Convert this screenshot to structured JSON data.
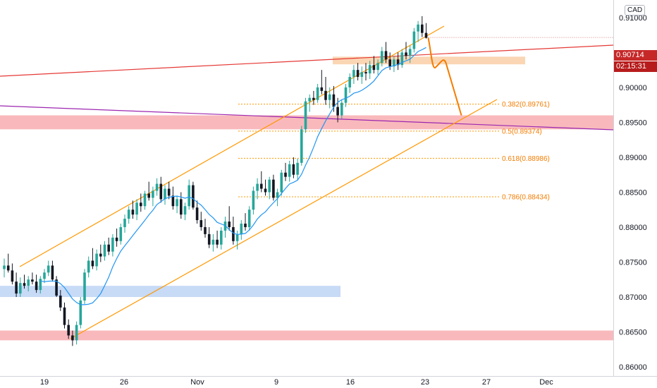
{
  "currency": "CAD",
  "price_tag": "0.90714",
  "timer_tag": "02:15:31",
  "colors": {
    "up": "#26a69a",
    "candle": "#131722",
    "ma": "#2196f3",
    "channel": "#ff9800",
    "resistance": "#e53935",
    "purple": "#9c27b0",
    "zone_red": "#f7a1a6",
    "zone_blue": "#bdd3f5",
    "zone_orange": "#f9c89b",
    "price_badge": "#c62828"
  },
  "chart_data": {
    "type": "candlestick",
    "y_axis_ticks": [
      "0.91000",
      "0.90500",
      "0.90000",
      "0.89500",
      "0.89000",
      "0.88500",
      "0.88000",
      "0.87500",
      "0.87000",
      "0.86500",
      "0.86000"
    ],
    "x_axis_ticks": [
      "19",
      "26",
      "Nov",
      "9",
      "16",
      "23",
      "27",
      "Dec"
    ],
    "ylim": [
      0.8595,
      0.9115
    ],
    "fib_levels": [
      {
        "label": "0.382(0.89761)",
        "value": 0.89761
      },
      {
        "label": "0.5(0.89374)",
        "value": 0.89374
      },
      {
        "label": "0.618(0.88986)",
        "value": 0.88986
      },
      {
        "label": "0.786(0.88434)",
        "value": 0.88434
      }
    ],
    "zones": [
      {
        "kind": "support",
        "from": 0.894,
        "to": 0.896
      },
      {
        "kind": "support",
        "from": 0.8638,
        "to": 0.8652
      },
      {
        "kind": "demand",
        "from": 0.87,
        "to": 0.8716
      },
      {
        "kind": "supply",
        "from": 0.9033,
        "to": 0.9044
      }
    ],
    "candles": [
      [
        0.874,
        0.8755,
        0.8728,
        0.8745
      ],
      [
        0.8745,
        0.8762,
        0.8735,
        0.8738
      ],
      [
        0.8738,
        0.8748,
        0.8718,
        0.8722
      ],
      [
        0.8722,
        0.8735,
        0.87,
        0.8705
      ],
      [
        0.8705,
        0.8728,
        0.87,
        0.872
      ],
      [
        0.872,
        0.8732,
        0.8712,
        0.8716
      ],
      [
        0.8716,
        0.873,
        0.8708,
        0.8725
      ],
      [
        0.8725,
        0.8735,
        0.8718,
        0.8722
      ],
      [
        0.8722,
        0.8732,
        0.8706,
        0.871
      ],
      [
        0.871,
        0.873,
        0.8705,
        0.8726
      ],
      [
        0.8726,
        0.874,
        0.872,
        0.8735
      ],
      [
        0.8735,
        0.8752,
        0.873,
        0.8745
      ],
      [
        0.8745,
        0.8752,
        0.8722,
        0.8725
      ],
      [
        0.8725,
        0.873,
        0.87,
        0.8702
      ],
      [
        0.8702,
        0.871,
        0.868,
        0.8685
      ],
      [
        0.8685,
        0.8692,
        0.8655,
        0.866
      ],
      [
        0.866,
        0.8668,
        0.864,
        0.8645
      ],
      [
        0.8645,
        0.8652,
        0.863,
        0.8638
      ],
      [
        0.8638,
        0.8665,
        0.8632,
        0.866
      ],
      [
        0.866,
        0.87,
        0.8655,
        0.8695
      ],
      [
        0.8695,
        0.874,
        0.869,
        0.8735
      ],
      [
        0.8735,
        0.8758,
        0.8728,
        0.8752
      ],
      [
        0.8752,
        0.877,
        0.874,
        0.8744
      ],
      [
        0.8744,
        0.8768,
        0.8738,
        0.8762
      ],
      [
        0.8762,
        0.8775,
        0.875,
        0.8758
      ],
      [
        0.8758,
        0.878,
        0.8752,
        0.8775
      ],
      [
        0.8775,
        0.8785,
        0.876,
        0.8765
      ],
      [
        0.8765,
        0.879,
        0.8758,
        0.8785
      ],
      [
        0.8785,
        0.8798,
        0.8772,
        0.878
      ],
      [
        0.878,
        0.8805,
        0.8775,
        0.88
      ],
      [
        0.88,
        0.8818,
        0.8792,
        0.8812
      ],
      [
        0.8812,
        0.883,
        0.8805,
        0.8825
      ],
      [
        0.8825,
        0.8838,
        0.8812,
        0.8818
      ],
      [
        0.8818,
        0.884,
        0.881,
        0.8835
      ],
      [
        0.8835,
        0.8848,
        0.8822,
        0.883
      ],
      [
        0.883,
        0.8852,
        0.8825,
        0.8848
      ],
      [
        0.8848,
        0.8865,
        0.8838,
        0.8842
      ],
      [
        0.8842,
        0.8858,
        0.883,
        0.8852
      ],
      [
        0.8852,
        0.887,
        0.8845,
        0.8862
      ],
      [
        0.8862,
        0.8872,
        0.8835,
        0.884
      ],
      [
        0.884,
        0.886,
        0.8832,
        0.8855
      ],
      [
        0.8855,
        0.8865,
        0.884,
        0.8845
      ],
      [
        0.8845,
        0.8858,
        0.8825,
        0.883
      ],
      [
        0.883,
        0.8845,
        0.882,
        0.884
      ],
      [
        0.884,
        0.885,
        0.8812,
        0.8818
      ],
      [
        0.8818,
        0.8835,
        0.881,
        0.883
      ],
      [
        0.883,
        0.8868,
        0.8825,
        0.886
      ],
      [
        0.886,
        0.8865,
        0.8825,
        0.8828
      ],
      [
        0.8828,
        0.8838,
        0.8805,
        0.881
      ],
      [
        0.881,
        0.8822,
        0.8795,
        0.88
      ],
      [
        0.88,
        0.8812,
        0.8785,
        0.879
      ],
      [
        0.879,
        0.88,
        0.877,
        0.8775
      ],
      [
        0.8775,
        0.879,
        0.8765,
        0.8782
      ],
      [
        0.8782,
        0.8795,
        0.877,
        0.8775
      ],
      [
        0.8775,
        0.88,
        0.8768,
        0.8795
      ],
      [
        0.8795,
        0.8815,
        0.8785,
        0.8808
      ],
      [
        0.8808,
        0.883,
        0.8795,
        0.88
      ],
      [
        0.88,
        0.8815,
        0.8775,
        0.878
      ],
      [
        0.878,
        0.8795,
        0.8768,
        0.879
      ],
      [
        0.879,
        0.881,
        0.8782,
        0.8805
      ],
      [
        0.8805,
        0.882,
        0.8795,
        0.88
      ],
      [
        0.88,
        0.883,
        0.8795,
        0.8825
      ],
      [
        0.8825,
        0.8858,
        0.8818,
        0.8852
      ],
      [
        0.8852,
        0.887,
        0.884,
        0.8862
      ],
      [
        0.8862,
        0.888,
        0.885,
        0.8855
      ],
      [
        0.8855,
        0.8868,
        0.8845,
        0.885
      ],
      [
        0.885,
        0.8872,
        0.884,
        0.8868
      ],
      [
        0.8868,
        0.8875,
        0.8838,
        0.8842
      ],
      [
        0.8842,
        0.8855,
        0.883,
        0.885
      ],
      [
        0.885,
        0.8882,
        0.8845,
        0.8878
      ],
      [
        0.8878,
        0.8892,
        0.8866,
        0.8872
      ],
      [
        0.8872,
        0.8895,
        0.8865,
        0.889
      ],
      [
        0.889,
        0.89,
        0.887,
        0.8875
      ],
      [
        0.8875,
        0.8898,
        0.8868,
        0.8892
      ],
      [
        0.8892,
        0.8945,
        0.8888,
        0.894
      ],
      [
        0.894,
        0.8985,
        0.8935,
        0.898
      ],
      [
        0.898,
        0.899,
        0.8965,
        0.8985
      ],
      [
        0.8985,
        0.8995,
        0.8975,
        0.8982
      ],
      [
        0.8982,
        0.9005,
        0.8978,
        0.9
      ],
      [
        0.9,
        0.9025,
        0.899,
        0.8995
      ],
      [
        0.8995,
        0.9015,
        0.8975,
        0.8982
      ],
      [
        0.8982,
        0.9,
        0.897,
        0.899
      ],
      [
        0.899,
        0.9002,
        0.8965,
        0.8972
      ],
      [
        0.8972,
        0.8985,
        0.895,
        0.896
      ],
      [
        0.896,
        0.8982,
        0.8955,
        0.8978
      ],
      [
        0.8978,
        0.9005,
        0.8972,
        0.9
      ],
      [
        0.9,
        0.902,
        0.8992,
        0.9015
      ],
      [
        0.9015,
        0.9032,
        0.9005,
        0.9025
      ],
      [
        0.9025,
        0.9035,
        0.901,
        0.9015
      ],
      [
        0.9015,
        0.903,
        0.9005,
        0.9022
      ],
      [
        0.9022,
        0.9035,
        0.901,
        0.902
      ],
      [
        0.902,
        0.9038,
        0.9012,
        0.9032
      ],
      [
        0.9032,
        0.9045,
        0.902,
        0.9025
      ],
      [
        0.9025,
        0.904,
        0.9018,
        0.9035
      ],
      [
        0.9035,
        0.9058,
        0.903,
        0.9052
      ],
      [
        0.9052,
        0.9065,
        0.9035,
        0.904
      ],
      [
        0.904,
        0.905,
        0.9025,
        0.903
      ],
      [
        0.903,
        0.9045,
        0.9022,
        0.904
      ],
      [
        0.904,
        0.905,
        0.9025,
        0.9032
      ],
      [
        0.9032,
        0.9055,
        0.9028,
        0.905
      ],
      [
        0.905,
        0.9065,
        0.904,
        0.9045
      ],
      [
        0.9045,
        0.906,
        0.9035,
        0.9055
      ],
      [
        0.9055,
        0.9085,
        0.905,
        0.908
      ],
      [
        0.908,
        0.9095,
        0.9065,
        0.909
      ],
      [
        0.909,
        0.9102,
        0.9072,
        0.9078
      ],
      [
        0.9078,
        0.9092,
        0.907,
        0.9071
      ]
    ],
    "forecast_path": [
      [
        0.9071,
        0
      ],
      [
        0.9028,
        3
      ],
      [
        0.9035,
        8
      ],
      [
        0.896,
        15
      ]
    ]
  }
}
